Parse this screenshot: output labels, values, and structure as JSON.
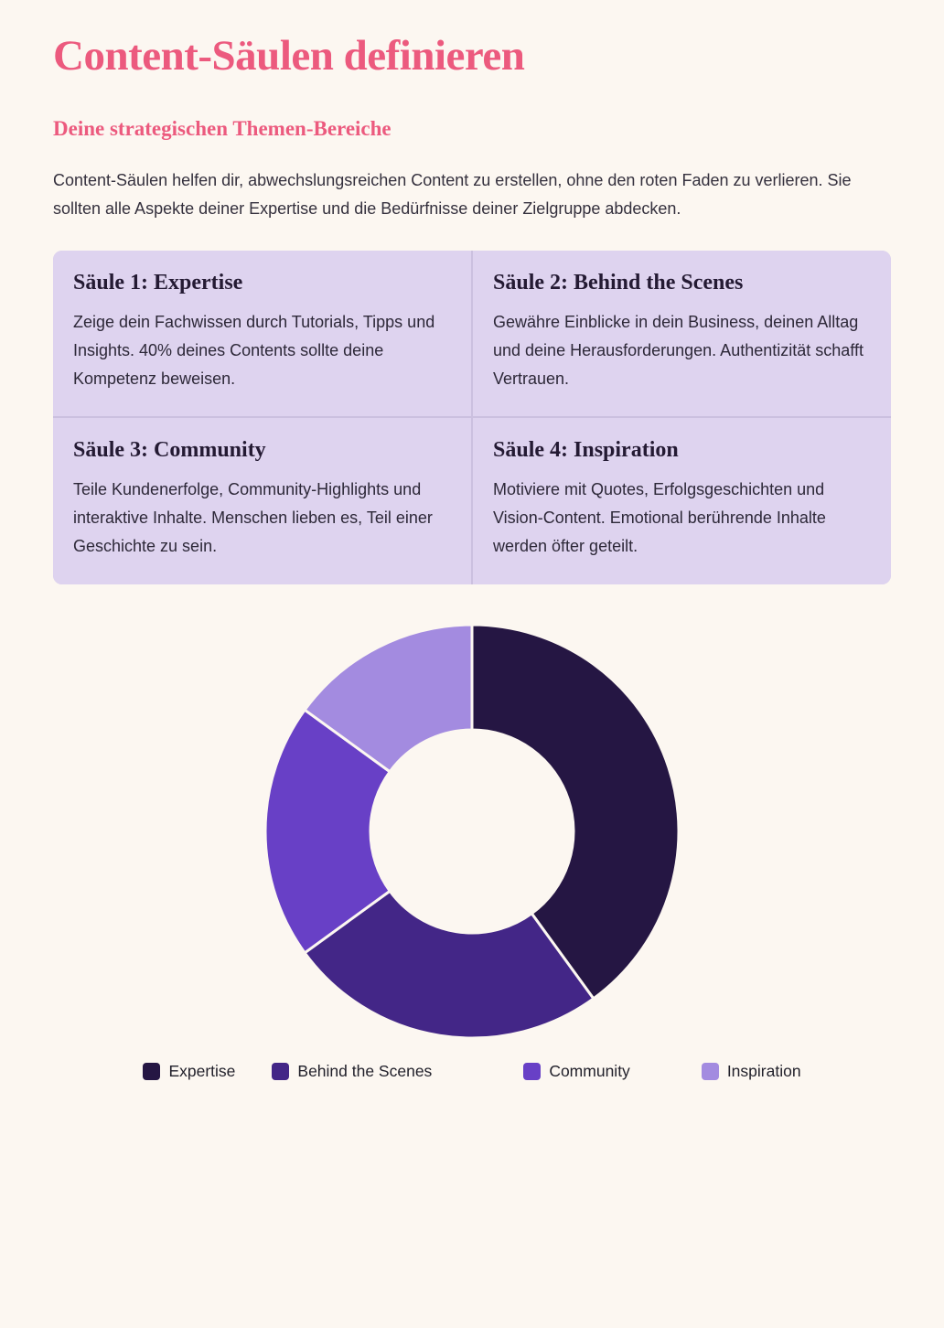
{
  "page": {
    "title": "Content-Säulen definieren",
    "subtitle": "Deine strategischen Themen-Bereiche",
    "intro": "Content-Säulen helfen dir, abwechslungsreichen Content zu erstellen, ohne den roten Faden zu verlieren. Sie sollten alle Aspekte deiner Expertise und die Bedürfnisse deiner Zielgruppe abdecken."
  },
  "cards": [
    {
      "title": "Säule 1: Expertise",
      "body": "Zeige dein Fachwissen durch Tutorials, Tipps und Insights. 40% deines Contents sollte deine Kompetenz beweisen."
    },
    {
      "title": "Säule 2: Behind the Scenes",
      "body": "Gewähre Einblicke in dein Business, deinen Alltag und deine Herausforderungen. Authentizität schafft Vertrauen."
    },
    {
      "title": "Säule 3: Community",
      "body": "Teile Kundenerfolge, Community-Highlights und interaktive Inhalte. Menschen lieben es, Teil einer Geschichte zu sein."
    },
    {
      "title": "Säule 4: Inspiration",
      "body": "Motiviere mit Quotes, Erfolgsgeschichten und Vision-Content. Emotional berührende Inhalte werden öfter geteilt."
    }
  ],
  "chart_data": {
    "type": "pie",
    "variant": "donut",
    "categories": [
      "Expertise",
      "Behind the Scenes",
      "Community",
      "Inspiration"
    ],
    "values": [
      40,
      25,
      20,
      15
    ],
    "unit": "percent",
    "colors": [
      "#251643",
      "#432687",
      "#6840C6",
      "#A38BE0"
    ],
    "start_angle_deg": 0,
    "direction": "clockwise",
    "cutout_ratio": 0.49,
    "legend_position": "bottom",
    "title": ""
  },
  "colors": {
    "page_background": "#FCF7F1",
    "accent_pink": "#EC5A7E",
    "card_background": "#DED3EF",
    "card_divider": "#CBC0DF",
    "segment_border": "#FCF7F1"
  }
}
